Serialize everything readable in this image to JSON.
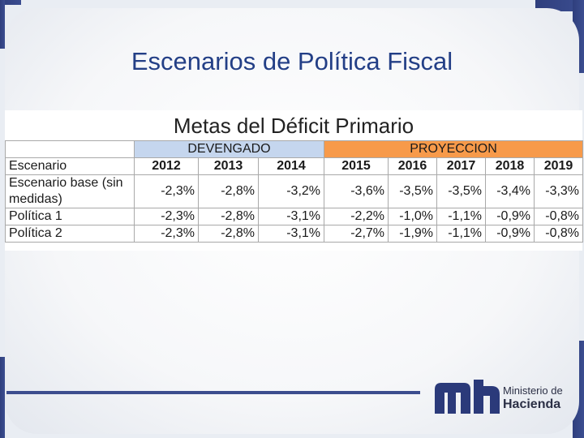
{
  "slide": {
    "title": "Escenarios de Política Fiscal"
  },
  "table": {
    "title": "Metas del Déficit Primario",
    "group_headers": {
      "devengado": "DEVENGADO",
      "proyeccion": "PROYECCION"
    },
    "column_header": "Escenario",
    "years": [
      "2012",
      "2013",
      "2014",
      "2015",
      "2016",
      "2017",
      "2018",
      "2019"
    ],
    "rows": [
      {
        "label": "Escenario base (sin medidas)",
        "values": [
          "-2,3%",
          "-2,8%",
          "-3,2%",
          "-3,6%",
          "-3,5%",
          "-3,5%",
          "-3,4%",
          "-3,3%"
        ]
      },
      {
        "label": "Política 1",
        "values": [
          "-2,3%",
          "-2,8%",
          "-3,1%",
          "-2,2%",
          "-1,0%",
          "-1,1%",
          "-0,9%",
          "-0,8%"
        ]
      },
      {
        "label": "Política 2",
        "values": [
          "-2,3%",
          "-2,8%",
          "-3,1%",
          "-2,7%",
          "-1,9%",
          "-1,1%",
          "-0,9%",
          "-0,8%"
        ]
      }
    ]
  },
  "logo": {
    "line1": "Ministerio de",
    "line2": "Hacienda"
  },
  "colors": {
    "title": "#233f86",
    "devengado": "#c5d6ee",
    "proyeccion": "#f79a4a",
    "accent": "#3c4d8e"
  }
}
